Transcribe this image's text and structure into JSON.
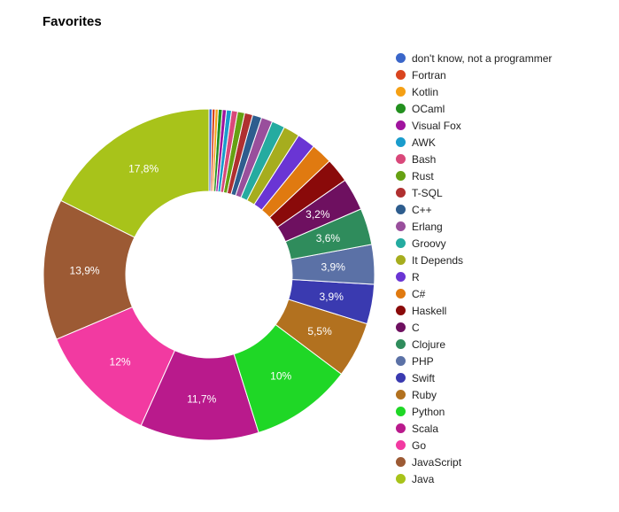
{
  "chart_data": {
    "type": "pie",
    "title": "Favorites",
    "slices": [
      {
        "label": "Java",
        "value": 17.8,
        "value_label": "17,8%",
        "color": "#a8c31a"
      },
      {
        "label": "JavaScript",
        "value": 13.9,
        "value_label": "13,9%",
        "color": "#9c5a34"
      },
      {
        "label": "Go",
        "value": 12.0,
        "value_label": "12%",
        "color": "#f23aa1"
      },
      {
        "label": "Scala",
        "value": 11.7,
        "value_label": "11,7%",
        "color": "#b91a8c"
      },
      {
        "label": "Python",
        "value": 10.0,
        "value_label": "10%",
        "color": "#1fd726"
      },
      {
        "label": "Ruby",
        "value": 5.5,
        "value_label": "5,5%",
        "color": "#b2711f"
      },
      {
        "label": "Swift",
        "value": 3.9,
        "value_label": "3,9%",
        "color": "#3a3ab0"
      },
      {
        "label": "PHP",
        "value": 3.9,
        "value_label": "3,9%",
        "color": "#5b71a6"
      },
      {
        "label": "Clojure",
        "value": 3.6,
        "value_label": "3,6%",
        "color": "#2f8c5c"
      },
      {
        "label": "C",
        "value": 3.2,
        "value_label": "3,2%",
        "color": "#6e1060"
      },
      {
        "label": "Haskell",
        "value": 2.4,
        "value_label": "",
        "color": "#8a0a0a"
      },
      {
        "label": "C#",
        "value": 2.1,
        "value_label": "",
        "color": "#e07a10"
      },
      {
        "label": "R",
        "value": 1.8,
        "value_label": "",
        "color": "#6a35d4"
      },
      {
        "label": "It Depends",
        "value": 1.6,
        "value_label": "",
        "color": "#a6ad1e"
      },
      {
        "label": "Groovy",
        "value": 1.3,
        "value_label": "",
        "color": "#25aba0"
      },
      {
        "label": "Erlang",
        "value": 1.1,
        "value_label": "",
        "color": "#994f9c"
      },
      {
        "label": "C++",
        "value": 0.9,
        "value_label": "",
        "color": "#2e5d8e"
      },
      {
        "label": "T-SQL",
        "value": 0.8,
        "value_label": "",
        "color": "#b03030"
      },
      {
        "label": "Rust",
        "value": 0.7,
        "value_label": "",
        "color": "#66a113"
      },
      {
        "label": "Bash",
        "value": 0.6,
        "value_label": "",
        "color": "#d9487a"
      },
      {
        "label": "AWK",
        "value": 0.5,
        "value_label": "",
        "color": "#1a9ccc"
      },
      {
        "label": "Visual Fox",
        "value": 0.4,
        "value_label": "",
        "color": "#a0149e"
      },
      {
        "label": "OCaml",
        "value": 0.4,
        "value_label": "",
        "color": "#23901f"
      },
      {
        "label": "Kotlin",
        "value": 0.3,
        "value_label": "",
        "color": "#f5a014"
      },
      {
        "label": "Fortran",
        "value": 0.3,
        "value_label": "",
        "color": "#d9451f"
      },
      {
        "label": "don't know, not a programmer",
        "value": 0.3,
        "value_label": "",
        "color": "#3a66c9"
      }
    ],
    "legend_placement": "right",
    "start_angle": "top, clockwise"
  }
}
